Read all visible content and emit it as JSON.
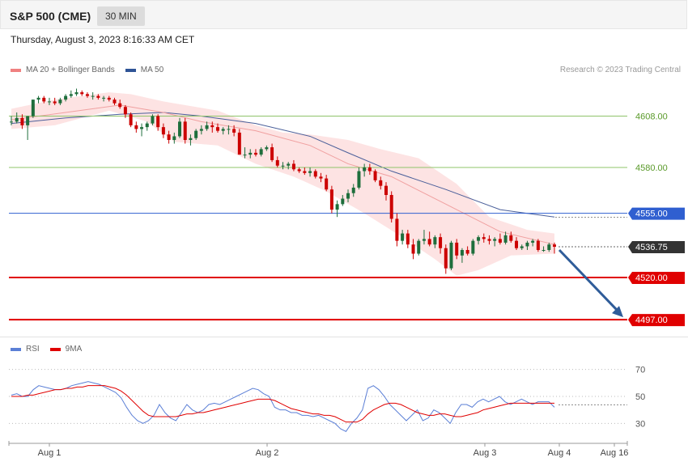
{
  "header": {
    "title": "S&P 500 (CME)",
    "timeframe": "30 MIN",
    "datetime": "Thursday, August 3, 2023 8:16:33 AM CET",
    "copyright": "Research © 2023 Trading Central"
  },
  "legend_main": [
    {
      "label": "MA 20 + Bollinger Bands",
      "color": "#f08080"
    },
    {
      "label": "MA 50",
      "color": "#2f5496"
    }
  ],
  "legend_rsi": [
    {
      "label": "RSI",
      "color": "#5b7fd6"
    },
    {
      "label": "9MA",
      "color": "#e00000"
    }
  ],
  "colors": {
    "up": "#1e6e3c",
    "down": "#cc0000",
    "band": "#fde3e3",
    "ma20": "#f0a0a0",
    "ma50": "#4a5f9a",
    "support": "#e00000",
    "resistance": "#2f5fd0",
    "pivot": "#8fc46a",
    "current": "#333333",
    "arrow": "#2f5c99"
  },
  "chart_data": [
    {
      "type": "candlestick",
      "title": "",
      "ylim": [
        4490,
        4625
      ],
      "x_labels": [
        "Aug 1",
        "Aug 2",
        "Aug 3",
        "Aug 4",
        "Aug 16"
      ],
      "candles": [
        [
          4605,
          4608,
          4603,
          4605
        ],
        [
          4605,
          4610,
          4604,
          4607
        ],
        [
          4607,
          4609,
          4601,
          4603
        ],
        [
          4603,
          4608,
          4595,
          4608
        ],
        [
          4608,
          4617,
          4607,
          4617
        ],
        [
          4617,
          4619,
          4615,
          4618
        ],
        [
          4618,
          4619,
          4615,
          4616
        ],
        [
          4616,
          4618,
          4614,
          4616
        ],
        [
          4616,
          4618,
          4614,
          4615
        ],
        [
          4615,
          4618,
          4614,
          4617
        ],
        [
          4617,
          4620,
          4616,
          4619
        ],
        [
          4619,
          4622,
          4618,
          4620
        ],
        [
          4620,
          4623,
          4619,
          4621
        ],
        [
          4621,
          4622,
          4619,
          4620
        ],
        [
          4620,
          4621,
          4618,
          4619
        ],
        [
          4619,
          4621,
          4617,
          4619
        ],
        [
          4619,
          4620,
          4617,
          4618
        ],
        [
          4618,
          4619,
          4616,
          4618
        ],
        [
          4618,
          4619,
          4616,
          4617
        ],
        [
          4617,
          4618,
          4614,
          4615
        ],
        [
          4615,
          4617,
          4612,
          4613
        ],
        [
          4613,
          4614,
          4607,
          4609
        ],
        [
          4609,
          4610,
          4602,
          4603
        ],
        [
          4603,
          4605,
          4599,
          4601
        ],
        [
          4601,
          4604,
          4597,
          4602
        ],
        [
          4602,
          4605,
          4600,
          4604
        ],
        [
          4604,
          4609,
          4603,
          4608
        ],
        [
          4608,
          4609,
          4600,
          4602
        ],
        [
          4602,
          4604,
          4596,
          4598
        ],
        [
          4598,
          4600,
          4593,
          4595
        ],
        [
          4595,
          4599,
          4593,
          4597
        ],
        [
          4597,
          4607,
          4596,
          4605
        ],
        [
          4605,
          4607,
          4593,
          4595
        ],
        [
          4595,
          4598,
          4592,
          4596
        ],
        [
          4596,
          4601,
          4595,
          4600
        ],
        [
          4600,
          4603,
          4598,
          4601
        ],
        [
          4601,
          4605,
          4600,
          4603
        ],
        [
          4603,
          4605,
          4599,
          4602
        ],
        [
          4602,
          4604,
          4599,
          4600
        ],
        [
          4600,
          4602,
          4598,
          4601
        ],
        [
          4601,
          4603,
          4598,
          4601
        ],
        [
          4601,
          4603,
          4597,
          4599
        ],
        [
          4599,
          4601,
          4587,
          4587
        ],
        [
          4587,
          4591,
          4585,
          4587
        ],
        [
          4587,
          4590,
          4585,
          4588
        ],
        [
          4588,
          4590,
          4586,
          4587
        ],
        [
          4587,
          4591,
          4586,
          4590
        ],
        [
          4590,
          4592,
          4589,
          4591
        ],
        [
          4591,
          4593,
          4583,
          4584
        ],
        [
          4584,
          4586,
          4580,
          4581
        ],
        [
          4581,
          4583,
          4579,
          4581
        ],
        [
          4581,
          4583,
          4579,
          4582
        ],
        [
          4582,
          4584,
          4578,
          4579
        ],
        [
          4579,
          4580,
          4577,
          4578
        ],
        [
          4578,
          4580,
          4576,
          4577
        ],
        [
          4577,
          4580,
          4575,
          4578
        ],
        [
          4578,
          4579,
          4574,
          4575
        ],
        [
          4575,
          4577,
          4572,
          4574
        ],
        [
          4574,
          4576,
          4567,
          4568
        ],
        [
          4568,
          4570,
          4555,
          4557
        ],
        [
          4557,
          4562,
          4553,
          4560
        ],
        [
          4560,
          4565,
          4559,
          4563
        ],
        [
          4563,
          4568,
          4561,
          4566
        ],
        [
          4566,
          4571,
          4564,
          4569
        ],
        [
          4569,
          4580,
          4568,
          4578
        ],
        [
          4578,
          4582,
          4575,
          4580
        ],
        [
          4580,
          4582,
          4576,
          4578
        ],
        [
          4578,
          4579,
          4572,
          4573
        ],
        [
          4573,
          4575,
          4568,
          4570
        ],
        [
          4570,
          4572,
          4562,
          4565
        ],
        [
          4565,
          4567,
          4550,
          4552
        ],
        [
          4552,
          4555,
          4537,
          4540
        ],
        [
          4540,
          4546,
          4538,
          4544
        ],
        [
          4544,
          4546,
          4536,
          4538
        ],
        [
          4538,
          4541,
          4530,
          4533
        ],
        [
          4533,
          4541,
          4532,
          4540
        ],
        [
          4540,
          4546,
          4538,
          4541
        ],
        [
          4541,
          4545,
          4537,
          4538
        ],
        [
          4538,
          4543,
          4536,
          4542
        ],
        [
          4542,
          4544,
          4533,
          4536
        ],
        [
          4536,
          4538,
          4522,
          4525
        ],
        [
          4525,
          4540,
          4524,
          4539
        ],
        [
          4539,
          4541,
          4530,
          4532
        ],
        [
          4532,
          4536,
          4528,
          4535
        ],
        [
          4535,
          4537,
          4532,
          4533
        ],
        [
          4533,
          4541,
          4532,
          4540
        ],
        [
          4540,
          4543,
          4538,
          4542
        ],
        [
          4542,
          4544,
          4539,
          4541
        ],
        [
          4541,
          4543,
          4538,
          4540
        ],
        [
          4540,
          4542,
          4537,
          4541
        ],
        [
          4541,
          4544,
          4538,
          4539
        ],
        [
          4539,
          4545,
          4538,
          4543
        ],
        [
          4543,
          4545,
          4539,
          4540
        ],
        [
          4540,
          4542,
          4535,
          4536
        ],
        [
          4536,
          4538,
          4535,
          4537
        ],
        [
          4537,
          4540,
          4535,
          4539
        ],
        [
          4539,
          4541,
          4537,
          4540
        ],
        [
          4540,
          4541,
          4534,
          4535
        ],
        [
          4535,
          4537,
          4534,
          4535
        ],
        [
          4535,
          4539,
          4534,
          4538
        ],
        [
          4538,
          4539,
          4533,
          4536.75
        ]
      ],
      "ma20": [
        [
          0,
          4606
        ],
        [
          10,
          4610
        ],
        [
          20,
          4614
        ],
        [
          28,
          4610
        ],
        [
          35,
          4605
        ],
        [
          45,
          4600
        ],
        [
          55,
          4592
        ],
        [
          62,
          4582
        ],
        [
          70,
          4575
        ],
        [
          80,
          4560
        ],
        [
          90,
          4545
        ],
        [
          100,
          4538
        ]
      ],
      "ma50": [
        [
          0,
          4604
        ],
        [
          10,
          4607
        ],
        [
          20,
          4609
        ],
        [
          28,
          4610
        ],
        [
          35,
          4608
        ],
        [
          45,
          4604
        ],
        [
          55,
          4597
        ],
        [
          62,
          4588
        ],
        [
          70,
          4578
        ],
        [
          80,
          4568
        ],
        [
          90,
          4557
        ],
        [
          100,
          4553
        ]
      ],
      "bb_upper": [
        [
          0,
          4612
        ],
        [
          8,
          4617
        ],
        [
          18,
          4621
        ],
        [
          22,
          4620
        ],
        [
          28,
          4616
        ],
        [
          38,
          4611
        ],
        [
          45,
          4603
        ],
        [
          50,
          4599
        ],
        [
          55,
          4598
        ],
        [
          62,
          4595
        ],
        [
          68,
          4590
        ],
        [
          75,
          4585
        ],
        [
          82,
          4571
        ],
        [
          88,
          4553
        ],
        [
          95,
          4546
        ],
        [
          100,
          4544
        ]
      ],
      "bb_lower": [
        [
          0,
          4601
        ],
        [
          8,
          4603
        ],
        [
          18,
          4611
        ],
        [
          25,
          4605
        ],
        [
          30,
          4594
        ],
        [
          38,
          4592
        ],
        [
          45,
          4582
        ],
        [
          52,
          4575
        ],
        [
          58,
          4567
        ],
        [
          65,
          4555
        ],
        [
          72,
          4542
        ],
        [
          78,
          4530
        ],
        [
          82,
          4521
        ],
        [
          86,
          4524
        ],
        [
          92,
          4532
        ],
        [
          100,
          4533
        ]
      ],
      "levels": [
        {
          "value": 4608.0,
          "label": "4608.00",
          "kind": "pivot"
        },
        {
          "value": 4580.0,
          "label": "4580.00",
          "kind": "pivot"
        },
        {
          "value": 4555.0,
          "label": "4555.00",
          "kind": "resistance"
        },
        {
          "value": 4536.75,
          "label": "4536.75",
          "kind": "current"
        },
        {
          "value": 4520.0,
          "label": "4520.00",
          "kind": "support"
        },
        {
          "value": 4497.0,
          "label": "4497.00",
          "kind": "support"
        }
      ],
      "projection": {
        "from": 4535,
        "to": 4497
      }
    },
    {
      "type": "line",
      "title": "",
      "ylim": [
        20,
        80
      ],
      "y_ticks": [
        70,
        50,
        30
      ],
      "series": [
        {
          "name": "RSI",
          "values": [
            51,
            52,
            50,
            50,
            55,
            58,
            57,
            56,
            55,
            55,
            56,
            58,
            59,
            60,
            61,
            60,
            59,
            57,
            55,
            53,
            49,
            42,
            36,
            32,
            30,
            32,
            36,
            44,
            38,
            34,
            32,
            38,
            44,
            40,
            38,
            40,
            44,
            45,
            44,
            46,
            48,
            50,
            52,
            54,
            56,
            55,
            52,
            50,
            42,
            40,
            40,
            38,
            38,
            36,
            36,
            35,
            36,
            34,
            32,
            30,
            26,
            24,
            30,
            34,
            40,
            56,
            58,
            55,
            50,
            44,
            40,
            36,
            32,
            36,
            40,
            32,
            34,
            40,
            38,
            34,
            30,
            38,
            44,
            44,
            42,
            46,
            48,
            46,
            48,
            50,
            46,
            44,
            46,
            48,
            46,
            44,
            46,
            46,
            46,
            42
          ]
        },
        {
          "name": "9MA",
          "values": [
            50,
            50,
            50,
            51,
            51,
            52,
            53,
            54,
            55,
            55,
            56,
            56,
            57,
            57,
            58,
            58,
            58,
            58,
            57,
            56,
            54,
            51,
            47,
            43,
            39,
            36,
            35,
            35,
            35,
            35,
            35,
            36,
            37,
            37,
            38,
            38,
            39,
            40,
            41,
            42,
            43,
            44,
            45,
            46,
            47,
            48,
            48,
            48,
            47,
            45,
            43,
            41,
            40,
            39,
            38,
            37,
            37,
            36,
            36,
            35,
            33,
            31,
            31,
            31,
            33,
            37,
            40,
            42,
            44,
            45,
            45,
            44,
            42,
            40,
            38,
            37,
            36,
            36,
            37,
            37,
            36,
            35,
            35,
            36,
            37,
            38,
            40,
            41,
            42,
            43,
            44,
            45,
            45,
            45,
            45,
            45,
            45,
            45,
            45,
            45
          ]
        }
      ]
    }
  ]
}
